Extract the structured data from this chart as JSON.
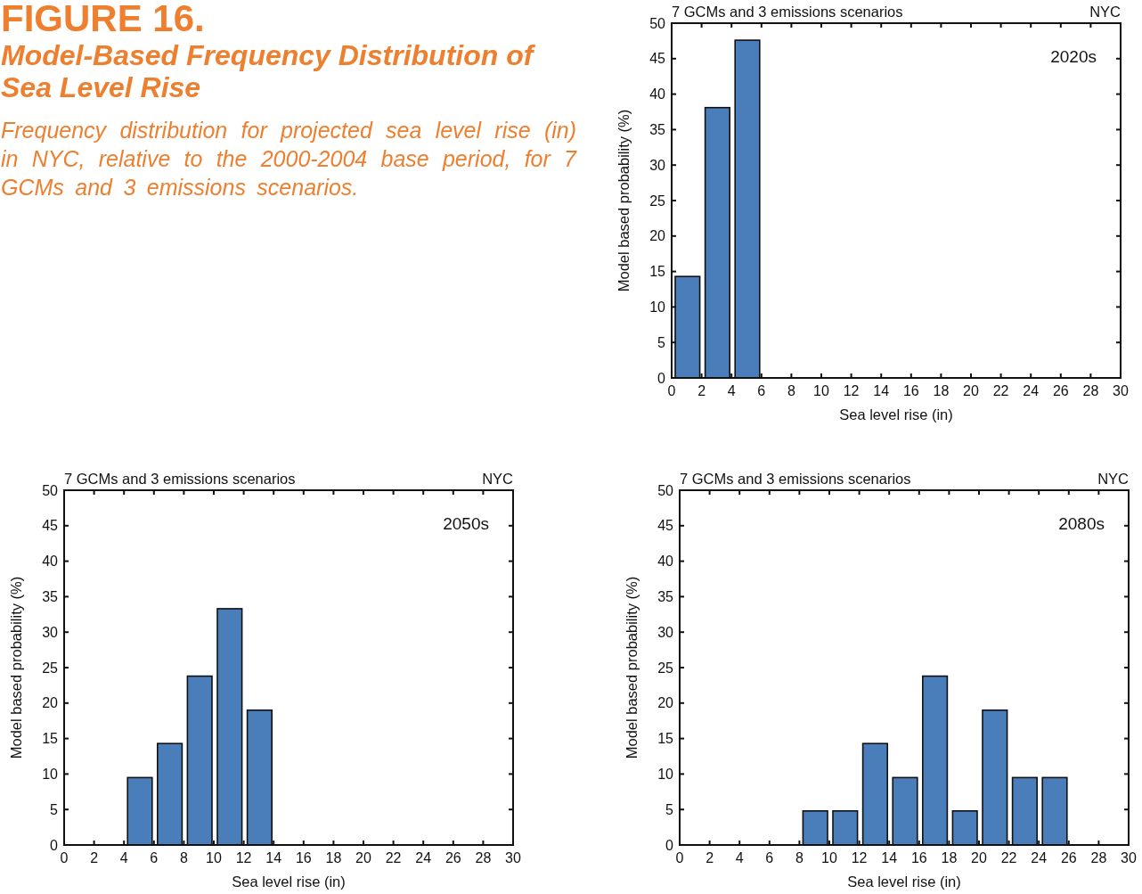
{
  "chart_data": [
    {
      "type": "other",
      "title": "FIGURE 16.",
      "subtitle": "Model-Based Frequency Distribution of Sea Level Rise",
      "annotations": [
        "Frequency distribution for projected sea level rise (in) in NYC, relative to the 2000-2004 base period, for 7 GCMs and 3 emissions scenarios."
      ]
    },
    {
      "type": "histogram",
      "title": "7 GCMs and 3 emissions scenarios",
      "annotations": [
        "NYC",
        "2020s"
      ],
      "xlabel": "Sea level rise (in)",
      "ylabel": "Model based probability (%)",
      "bins": [
        0,
        2,
        4,
        6
      ],
      "values": [
        14.3,
        38.1,
        47.6
      ],
      "color": "#4a7ebb",
      "xlim": [
        0,
        30
      ],
      "xticks": [
        0,
        2,
        4,
        6,
        8,
        10,
        12,
        14,
        16,
        18,
        20,
        22,
        24,
        26,
        28,
        30
      ],
      "ylim": [
        0,
        50
      ],
      "yticks": [
        0,
        5,
        10,
        15,
        20,
        25,
        30,
        35,
        40,
        45,
        50
      ]
    },
    {
      "type": "histogram",
      "title": "7 GCMs and 3 emissions scenarios",
      "annotations": [
        "NYC",
        "2050s"
      ],
      "xlabel": "Sea level rise (in)",
      "ylabel": "Model based probability (%)",
      "bins": [
        4,
        6,
        8,
        10,
        12,
        14
      ],
      "values": [
        9.5,
        14.3,
        23.8,
        33.3,
        19.0
      ],
      "color": "#4a7ebb",
      "xlim": [
        0,
        30
      ],
      "xticks": [
        0,
        2,
        4,
        6,
        8,
        10,
        12,
        14,
        16,
        18,
        20,
        22,
        24,
        26,
        28,
        30
      ],
      "ylim": [
        0,
        50
      ],
      "yticks": [
        0,
        5,
        10,
        15,
        20,
        25,
        30,
        35,
        40,
        45,
        50
      ]
    },
    {
      "type": "histogram",
      "title": "7 GCMs and 3 emissions scenarios",
      "annotations": [
        "NYC",
        "2080s"
      ],
      "xlabel": "Sea level rise (in)",
      "ylabel": "Model based probability (%)",
      "bins": [
        8,
        10,
        12,
        14,
        16,
        18,
        20,
        22,
        24,
        26
      ],
      "values": [
        4.8,
        4.8,
        14.3,
        9.5,
        23.8,
        4.8,
        19.0,
        9.5,
        9.5
      ],
      "color": "#4a7ebb",
      "xlim": [
        0,
        30
      ],
      "xticks": [
        0,
        2,
        4,
        6,
        8,
        10,
        12,
        14,
        16,
        18,
        20,
        22,
        24,
        26,
        28,
        30
      ],
      "ylim": [
        0,
        50
      ],
      "yticks": [
        0,
        5,
        10,
        15,
        20,
        25,
        30,
        35,
        40,
        45,
        50
      ]
    }
  ]
}
